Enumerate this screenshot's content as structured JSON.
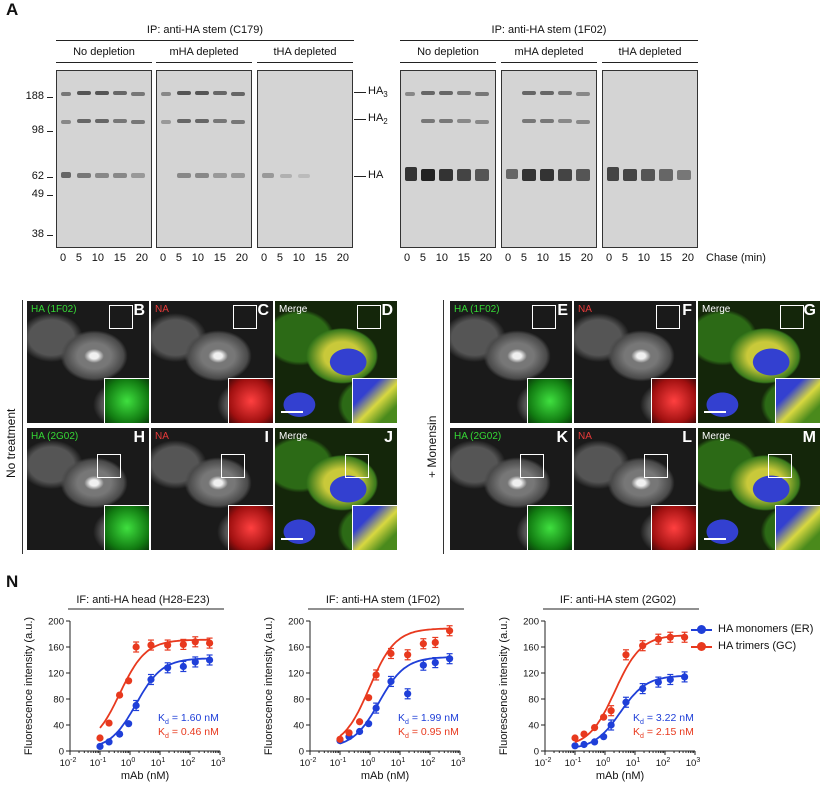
{
  "panel_a": {
    "label": "A",
    "groups": [
      {
        "title": "IP: anti-HA stem (C179)",
        "conditions": [
          "No depletion",
          "mHA depleted",
          "tHA depleted"
        ]
      },
      {
        "title": "IP: anti-HA stem (1F02)",
        "conditions": [
          "No depletion",
          "mHA depleted",
          "tHA depleted"
        ]
      }
    ],
    "mw_markers": [
      "188",
      "98",
      "62",
      "49",
      "38"
    ],
    "band_labels": [
      "HA3",
      "HA2",
      "HA"
    ],
    "band_subscripts": [
      "3",
      "2",
      ""
    ],
    "lane_labels": [
      "0",
      "5",
      "10",
      "15",
      "20"
    ],
    "chase_label": "Chase (min)"
  },
  "panel_micro": {
    "row_label_left": "No treatment",
    "row_label_right": "+ Monensin",
    "panels": [
      {
        "letter": "B",
        "channel": "HA (1F02)",
        "type": "ha"
      },
      {
        "letter": "C",
        "channel": "NA",
        "type": "na"
      },
      {
        "letter": "D",
        "channel": "Merge",
        "type": "merge"
      },
      {
        "letter": "H",
        "channel": "HA (2G02)",
        "type": "ha"
      },
      {
        "letter": "I",
        "channel": "NA",
        "type": "na"
      },
      {
        "letter": "J",
        "channel": "Merge",
        "type": "merge"
      },
      {
        "letter": "E",
        "channel": "HA (1F02)",
        "type": "ha"
      },
      {
        "letter": "F",
        "channel": "NA",
        "type": "na"
      },
      {
        "letter": "G",
        "channel": "Merge",
        "type": "merge"
      },
      {
        "letter": "K",
        "channel": "HA (2G02)",
        "type": "ha"
      },
      {
        "letter": "L",
        "channel": "NA",
        "type": "na"
      },
      {
        "letter": "M",
        "channel": "Merge",
        "type": "merge"
      }
    ]
  },
  "panel_n": {
    "label": "N",
    "legend": [
      {
        "name": "HA monomers (ER)",
        "color": "#1f3fd8"
      },
      {
        "name": "HA trimers (GC)",
        "color": "#e8391e"
      }
    ]
  },
  "chart_data": [
    {
      "type": "scatter",
      "title": "IF: anti-HA head (H28-E23)",
      "xlabel": "mAb (nM)",
      "ylabel": "Fluorescence intensity (a.u.)",
      "xscale": "log",
      "xlim": [
        0.01,
        1000
      ],
      "ylim": [
        0,
        200
      ],
      "yticks": [
        "0",
        "40",
        "80",
        "120",
        "160",
        "200"
      ],
      "xtick_exponents": [
        "-2",
        "-1",
        "0",
        "1",
        "2",
        "3"
      ],
      "x": [
        0.1,
        0.2,
        0.45,
        0.9,
        1.6,
        5,
        18,
        60,
        150,
        450
      ],
      "series": [
        {
          "name": "HA monomers (ER)",
          "color": "#1f3fd8",
          "values": [
            7,
            14,
            26,
            42,
            70,
            110,
            128,
            130,
            137,
            140
          ]
        },
        {
          "name": "HA trimers (GC)",
          "color": "#e8391e",
          "values": [
            20,
            43,
            86,
            108,
            160,
            163,
            163,
            164,
            168,
            166
          ]
        }
      ],
      "annotations": [
        {
          "text": "K",
          "sub": "d",
          "rest": " = 1.60 nM",
          "color": "#1f3fd8"
        },
        {
          "text": "K",
          "sub": "d",
          "rest": " = 0.46 nM",
          "color": "#e8391e"
        }
      ]
    },
    {
      "type": "scatter",
      "title": "IF: anti-HA stem (1F02)",
      "xlabel": "mAb (nM)",
      "ylabel": "Fluorescence intensity (a.u.)",
      "xscale": "log",
      "xlim": [
        0.01,
        1000
      ],
      "ylim": [
        0,
        200
      ],
      "yticks": [
        "0",
        "40",
        "80",
        "120",
        "160",
        "200"
      ],
      "xtick_exponents": [
        "-2",
        "-1",
        "0",
        "1",
        "2",
        "3"
      ],
      "x": [
        0.1,
        0.2,
        0.45,
        0.9,
        1.6,
        5,
        18,
        60,
        150,
        450
      ],
      "series": [
        {
          "name": "HA monomers (ER)",
          "color": "#1f3fd8",
          "values": [
            16,
            22,
            30,
            42,
            66,
            107,
            88,
            132,
            136,
            142
          ]
        },
        {
          "name": "HA trimers (GC)",
          "color": "#e8391e",
          "values": [
            18,
            28,
            45,
            82,
            117,
            150,
            148,
            165,
            167,
            185
          ]
        }
      ],
      "annotations": [
        {
          "text": "K",
          "sub": "d",
          "rest": " = 1.99 nM",
          "color": "#1f3fd8"
        },
        {
          "text": "K",
          "sub": "d",
          "rest": " = 0.95 nM",
          "color": "#e8391e"
        }
      ]
    },
    {
      "type": "scatter",
      "title": "IF: anti-HA stem (2G02)",
      "xlabel": "mAb (nM)",
      "ylabel": "Fluorescence intensity (a.u.)",
      "xscale": "log",
      "xlim": [
        0.01,
        1000
      ],
      "ylim": [
        0,
        200
      ],
      "yticks": [
        "0",
        "40",
        "80",
        "120",
        "160",
        "200"
      ],
      "xtick_exponents": [
        "-2",
        "-1",
        "0",
        "1",
        "2",
        "3"
      ],
      "x": [
        0.1,
        0.2,
        0.45,
        0.9,
        1.6,
        5,
        18,
        60,
        150,
        450
      ],
      "series": [
        {
          "name": "HA monomers (ER)",
          "color": "#1f3fd8",
          "values": [
            8,
            10,
            14,
            22,
            40,
            75,
            96,
            106,
            110,
            114
          ]
        },
        {
          "name": "HA trimers (GC)",
          "color": "#e8391e",
          "values": [
            20,
            26,
            36,
            52,
            62,
            148,
            162,
            172,
            175,
            175
          ]
        }
      ],
      "annotations": [
        {
          "text": "K",
          "sub": "d",
          "rest": " = 3.22 nM",
          "color": "#1f3fd8"
        },
        {
          "text": "K",
          "sub": "d",
          "rest": " = 2.15 nM",
          "color": "#e8391e"
        }
      ]
    }
  ]
}
